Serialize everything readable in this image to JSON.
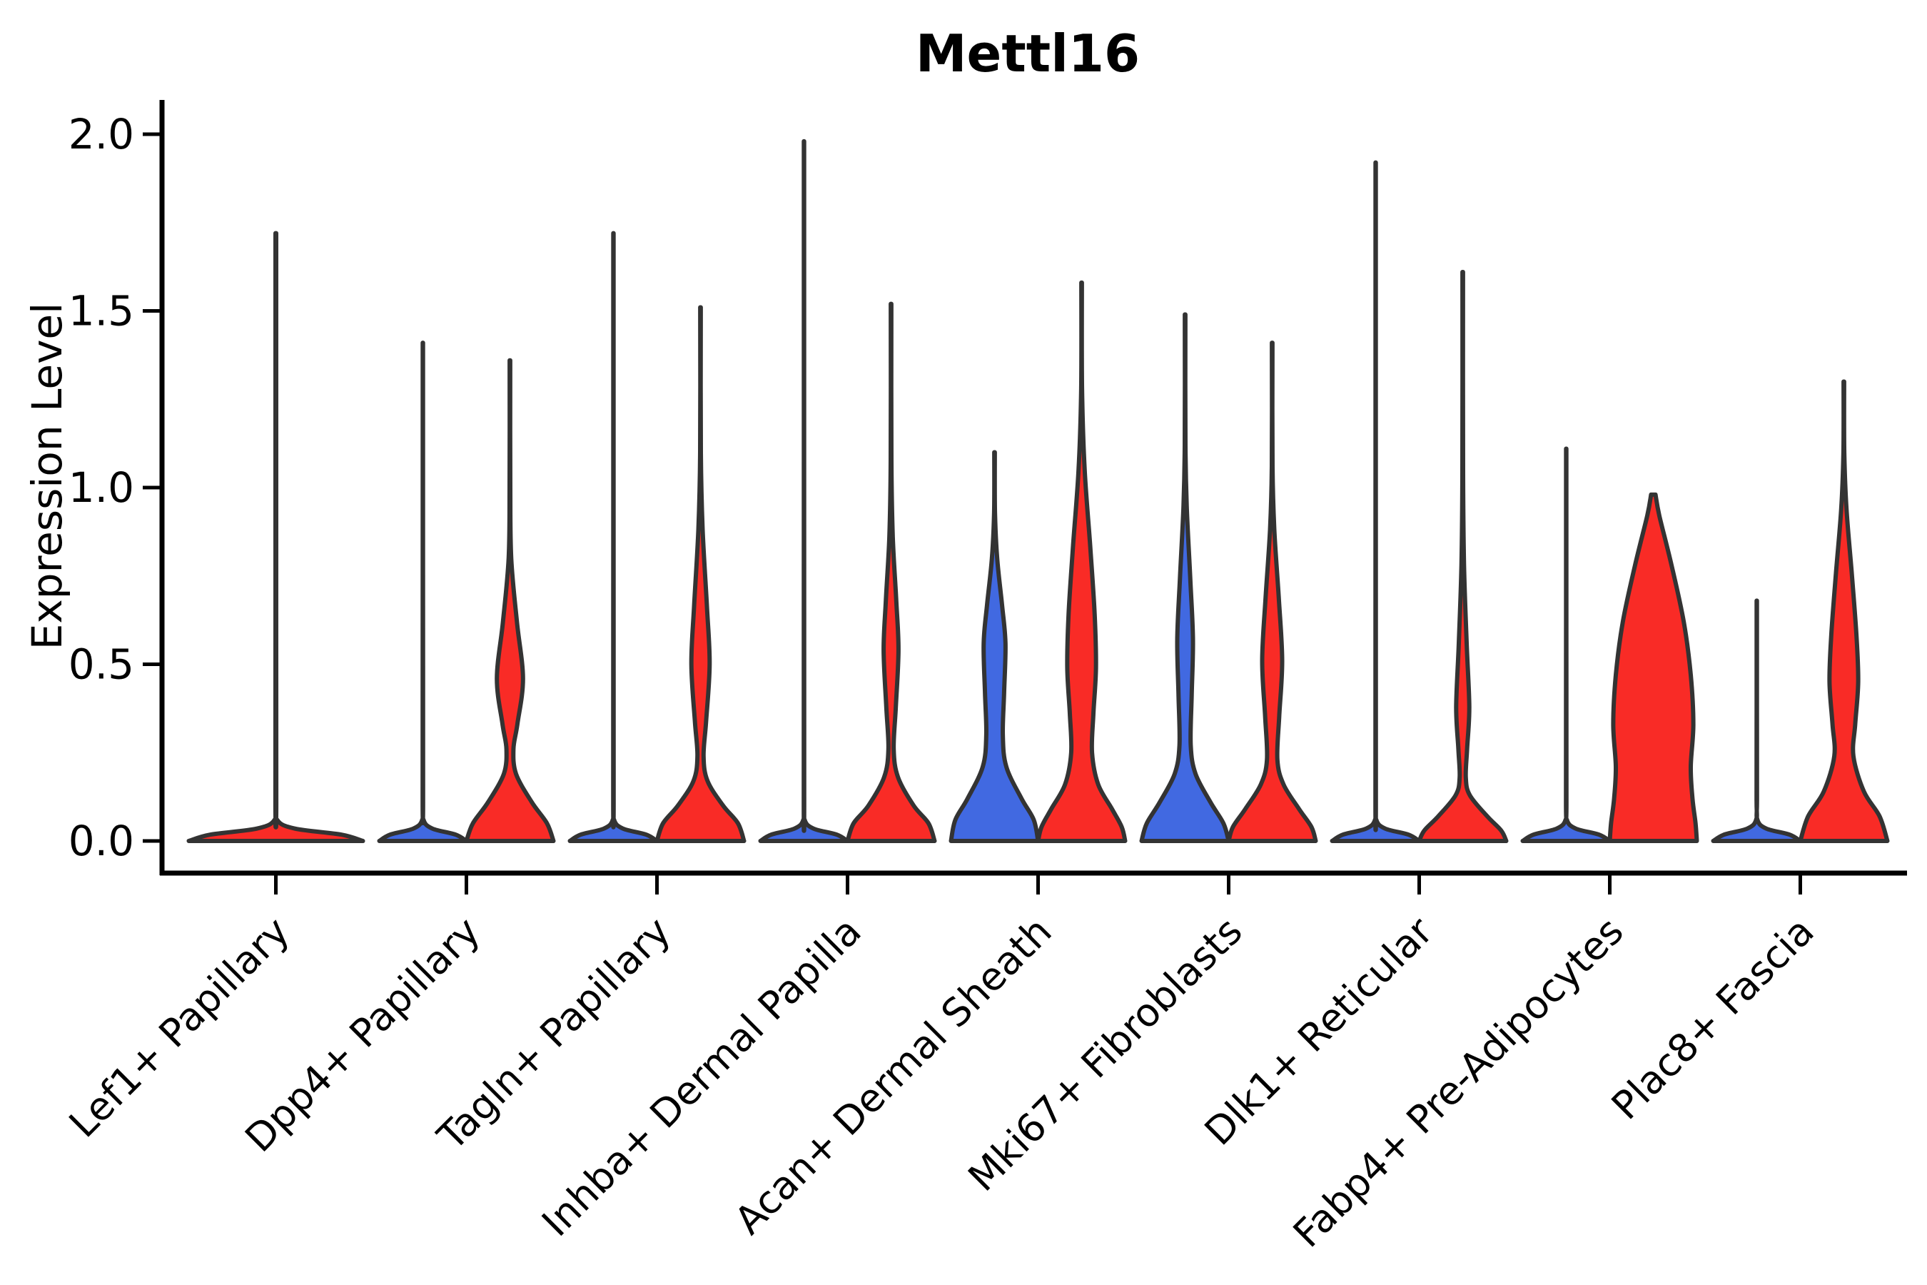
{
  "title": "Mettl16",
  "ylabel": "Expression Level",
  "colors": {
    "red": "#F92B26",
    "blue": "#4169E1",
    "outline": "#333333",
    "axis": "#000000"
  },
  "y_axis": {
    "tick_labels": [
      "0.0",
      "0.5",
      "1.0",
      "1.5",
      "2.0"
    ],
    "tick_values": [
      0.0,
      0.5,
      1.0,
      1.5,
      2.0
    ]
  },
  "chart_data": {
    "type": "violin",
    "title": "Mettl16",
    "xlabel": "",
    "ylabel": "Expression Level",
    "ylim": [
      0,
      2.0
    ],
    "grid": false,
    "legend": "none",
    "x_tick_rotation": 45,
    "categories": [
      "Lef1+ Papillary",
      "Dpp4+ Papillary",
      "Tagln+ Papillary",
      "Inhba+ Dermal Papilla",
      "Acan+ Dermal Sheath",
      "Mki67+ Fibroblasts",
      "Dlk1+ Reticular",
      "Fabp4+ Pre-Adipocytes",
      "Plac8+ Fascia"
    ],
    "violins": [
      {
        "category_index": 0,
        "position": "center",
        "fill": "red",
        "peak": 1.72,
        "shape": "flat_spike",
        "profile": null
      },
      {
        "category_index": 1,
        "position": "left",
        "fill": "blue",
        "peak": 1.41,
        "shape": "flat_spike",
        "profile": null
      },
      {
        "category_index": 1,
        "position": "right",
        "fill": "red",
        "peak": 1.36,
        "shape": "bulged",
        "profile": [
          [
            1.36,
            0.006
          ],
          [
            1.0,
            0.008
          ],
          [
            0.8,
            0.03
          ],
          [
            0.62,
            0.16
          ],
          [
            0.46,
            0.3
          ],
          [
            0.33,
            0.17
          ],
          [
            0.26,
            0.08
          ],
          [
            0.19,
            0.14
          ],
          [
            0.11,
            0.5
          ],
          [
            0.05,
            0.85
          ],
          [
            0,
            1.0
          ]
        ]
      },
      {
        "category_index": 2,
        "position": "left",
        "fill": "blue",
        "peak": 1.72,
        "shape": "flat_spike",
        "profile": null
      },
      {
        "category_index": 2,
        "position": "right",
        "fill": "red",
        "peak": 1.51,
        "shape": "bulged",
        "profile": [
          [
            1.51,
            0.006
          ],
          [
            1.1,
            0.008
          ],
          [
            0.88,
            0.05
          ],
          [
            0.66,
            0.15
          ],
          [
            0.5,
            0.21
          ],
          [
            0.34,
            0.13
          ],
          [
            0.24,
            0.07
          ],
          [
            0.17,
            0.16
          ],
          [
            0.1,
            0.52
          ],
          [
            0.05,
            0.86
          ],
          [
            0,
            1.0
          ]
        ]
      },
      {
        "category_index": 3,
        "position": "left",
        "fill": "blue",
        "peak": 1.98,
        "shape": "flat_spike",
        "profile": null
      },
      {
        "category_index": 3,
        "position": "right",
        "fill": "red",
        "peak": 1.52,
        "shape": "bulged",
        "profile": [
          [
            1.52,
            0.006
          ],
          [
            1.08,
            0.008
          ],
          [
            0.86,
            0.04
          ],
          [
            0.68,
            0.12
          ],
          [
            0.54,
            0.17
          ],
          [
            0.38,
            0.11
          ],
          [
            0.26,
            0.06
          ],
          [
            0.18,
            0.16
          ],
          [
            0.1,
            0.52
          ],
          [
            0.05,
            0.86
          ],
          [
            0,
            1.0
          ]
        ]
      },
      {
        "category_index": 4,
        "position": "left",
        "fill": "blue",
        "peak": 1.1,
        "shape": "bulged",
        "profile": [
          [
            1.1,
            0.006
          ],
          [
            0.93,
            0.01
          ],
          [
            0.8,
            0.06
          ],
          [
            0.67,
            0.17
          ],
          [
            0.56,
            0.25
          ],
          [
            0.42,
            0.22
          ],
          [
            0.3,
            0.19
          ],
          [
            0.21,
            0.27
          ],
          [
            0.12,
            0.62
          ],
          [
            0.06,
            0.9
          ],
          [
            0,
            1.0
          ]
        ]
      },
      {
        "category_index": 4,
        "position": "right",
        "fill": "red",
        "peak": 1.58,
        "shape": "bulged",
        "profile": [
          [
            1.58,
            0.006
          ],
          [
            1.28,
            0.01
          ],
          [
            1.05,
            0.07
          ],
          [
            0.83,
            0.2
          ],
          [
            0.64,
            0.3
          ],
          [
            0.49,
            0.33
          ],
          [
            0.36,
            0.27
          ],
          [
            0.25,
            0.24
          ],
          [
            0.16,
            0.38
          ],
          [
            0.09,
            0.7
          ],
          [
            0.04,
            0.92
          ],
          [
            0,
            1.0
          ]
        ]
      },
      {
        "category_index": 5,
        "position": "left",
        "fill": "blue",
        "peak": 1.49,
        "shape": "bulged",
        "profile": [
          [
            1.49,
            0.006
          ],
          [
            1.12,
            0.008
          ],
          [
            0.94,
            0.04
          ],
          [
            0.74,
            0.12
          ],
          [
            0.57,
            0.18
          ],
          [
            0.41,
            0.15
          ],
          [
            0.27,
            0.13
          ],
          [
            0.19,
            0.24
          ],
          [
            0.11,
            0.58
          ],
          [
            0.05,
            0.88
          ],
          [
            0,
            1.0
          ]
        ]
      },
      {
        "category_index": 5,
        "position": "right",
        "fill": "red",
        "peak": 1.41,
        "shape": "bulged",
        "profile": [
          [
            1.41,
            0.006
          ],
          [
            1.06,
            0.008
          ],
          [
            0.88,
            0.05
          ],
          [
            0.69,
            0.15
          ],
          [
            0.51,
            0.23
          ],
          [
            0.35,
            0.16
          ],
          [
            0.23,
            0.12
          ],
          [
            0.16,
            0.26
          ],
          [
            0.09,
            0.62
          ],
          [
            0.04,
            0.9
          ],
          [
            0,
            1.0
          ]
        ]
      },
      {
        "category_index": 6,
        "position": "left",
        "fill": "blue",
        "peak": 1.92,
        "shape": "flat_spike",
        "profile": null
      },
      {
        "category_index": 6,
        "position": "right",
        "fill": "red",
        "peak": 1.61,
        "shape": "bulged",
        "profile": [
          [
            1.61,
            0.006
          ],
          [
            1.05,
            0.008
          ],
          [
            0.78,
            0.03
          ],
          [
            0.56,
            0.09
          ],
          [
            0.38,
            0.15
          ],
          [
            0.26,
            0.1
          ],
          [
            0.18,
            0.07
          ],
          [
            0.13,
            0.16
          ],
          [
            0.07,
            0.56
          ],
          [
            0.03,
            0.88
          ],
          [
            0,
            1.0
          ]
        ]
      },
      {
        "category_index": 7,
        "position": "left",
        "fill": "blue",
        "peak": 1.11,
        "shape": "flat_spike",
        "profile": null
      },
      {
        "category_index": 7,
        "position": "right",
        "fill": "red",
        "peak": 0.98,
        "shape": "bulged",
        "profile": [
          [
            0.98,
            0.05
          ],
          [
            0.92,
            0.14
          ],
          [
            0.78,
            0.42
          ],
          [
            0.62,
            0.7
          ],
          [
            0.47,
            0.86
          ],
          [
            0.33,
            0.92
          ],
          [
            0.21,
            0.86
          ],
          [
            0.12,
            0.9
          ],
          [
            0.05,
            0.97
          ],
          [
            0,
            1.0
          ]
        ]
      },
      {
        "category_index": 8,
        "position": "left",
        "fill": "blue",
        "peak": 0.68,
        "shape": "flat_spike",
        "profile": null
      },
      {
        "category_index": 8,
        "position": "right",
        "fill": "red",
        "peak": 1.3,
        "shape": "bulged",
        "profile": [
          [
            1.3,
            0.006
          ],
          [
            1.1,
            0.01
          ],
          [
            0.94,
            0.06
          ],
          [
            0.76,
            0.18
          ],
          [
            0.58,
            0.29
          ],
          [
            0.45,
            0.33
          ],
          [
            0.33,
            0.26
          ],
          [
            0.24,
            0.22
          ],
          [
            0.14,
            0.46
          ],
          [
            0.07,
            0.82
          ],
          [
            0,
            1.0
          ]
        ]
      }
    ]
  }
}
